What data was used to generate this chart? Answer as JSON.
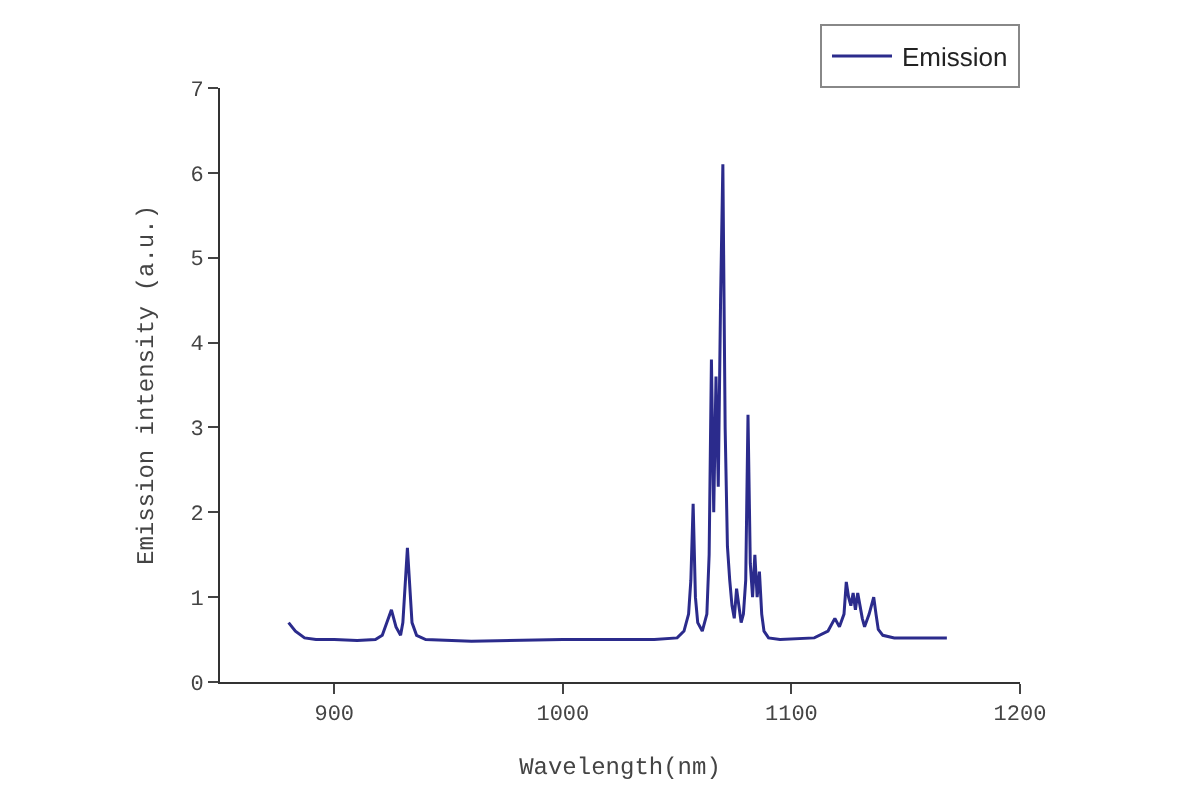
{
  "chart_data": {
    "type": "line",
    "xlabel": "Wavelength(nm)",
    "ylabel": "Emission intensity (a.u.)",
    "x": [
      880,
      883,
      887,
      892,
      900,
      910,
      918,
      921,
      923,
      925,
      927,
      929,
      930,
      932,
      934,
      936,
      940,
      960,
      1000,
      1040,
      1050,
      1053,
      1055,
      1056,
      1057,
      1058,
      1059,
      1061,
      1063,
      1064,
      1065,
      1066,
      1067,
      1068,
      1069,
      1070,
      1071,
      1072,
      1073,
      1074,
      1075,
      1076,
      1077,
      1078,
      1079,
      1080,
      1081,
      1082,
      1083,
      1084,
      1085,
      1086,
      1087,
      1088,
      1090,
      1095,
      1110,
      1116,
      1119,
      1121,
      1123,
      1124,
      1125,
      1126,
      1127,
      1128,
      1129,
      1130,
      1131,
      1132,
      1134,
      1136,
      1137,
      1138,
      1140,
      1145,
      1155,
      1168
    ],
    "series": [
      {
        "name": "Emission",
        "color": "#2b2b8c",
        "values": [
          0.7,
          0.6,
          0.52,
          0.5,
          0.5,
          0.49,
          0.5,
          0.55,
          0.7,
          0.85,
          0.65,
          0.55,
          0.7,
          1.58,
          0.7,
          0.55,
          0.5,
          0.48,
          0.5,
          0.5,
          0.52,
          0.6,
          0.8,
          1.2,
          2.1,
          1.0,
          0.7,
          0.6,
          0.8,
          1.5,
          3.8,
          2.0,
          3.6,
          2.3,
          4.5,
          6.1,
          3.0,
          1.6,
          1.2,
          0.9,
          0.75,
          1.1,
          0.9,
          0.7,
          0.8,
          1.2,
          3.15,
          1.4,
          1.0,
          1.5,
          1.0,
          1.3,
          0.8,
          0.6,
          0.52,
          0.5,
          0.52,
          0.6,
          0.75,
          0.65,
          0.8,
          1.18,
          1.0,
          0.9,
          1.05,
          0.85,
          1.05,
          0.9,
          0.75,
          0.65,
          0.8,
          1.0,
          0.8,
          0.62,
          0.55,
          0.52,
          0.52,
          0.52
        ]
      }
    ],
    "xlim": [
      850,
      1200
    ],
    "xticks": [
      900,
      1000,
      1100,
      1200
    ],
    "ylim": [
      0,
      7
    ],
    "yticks": [
      0,
      1,
      2,
      3,
      4,
      5,
      6,
      7
    ],
    "legend": "top right",
    "marker": "none",
    "line_style": "solid"
  }
}
